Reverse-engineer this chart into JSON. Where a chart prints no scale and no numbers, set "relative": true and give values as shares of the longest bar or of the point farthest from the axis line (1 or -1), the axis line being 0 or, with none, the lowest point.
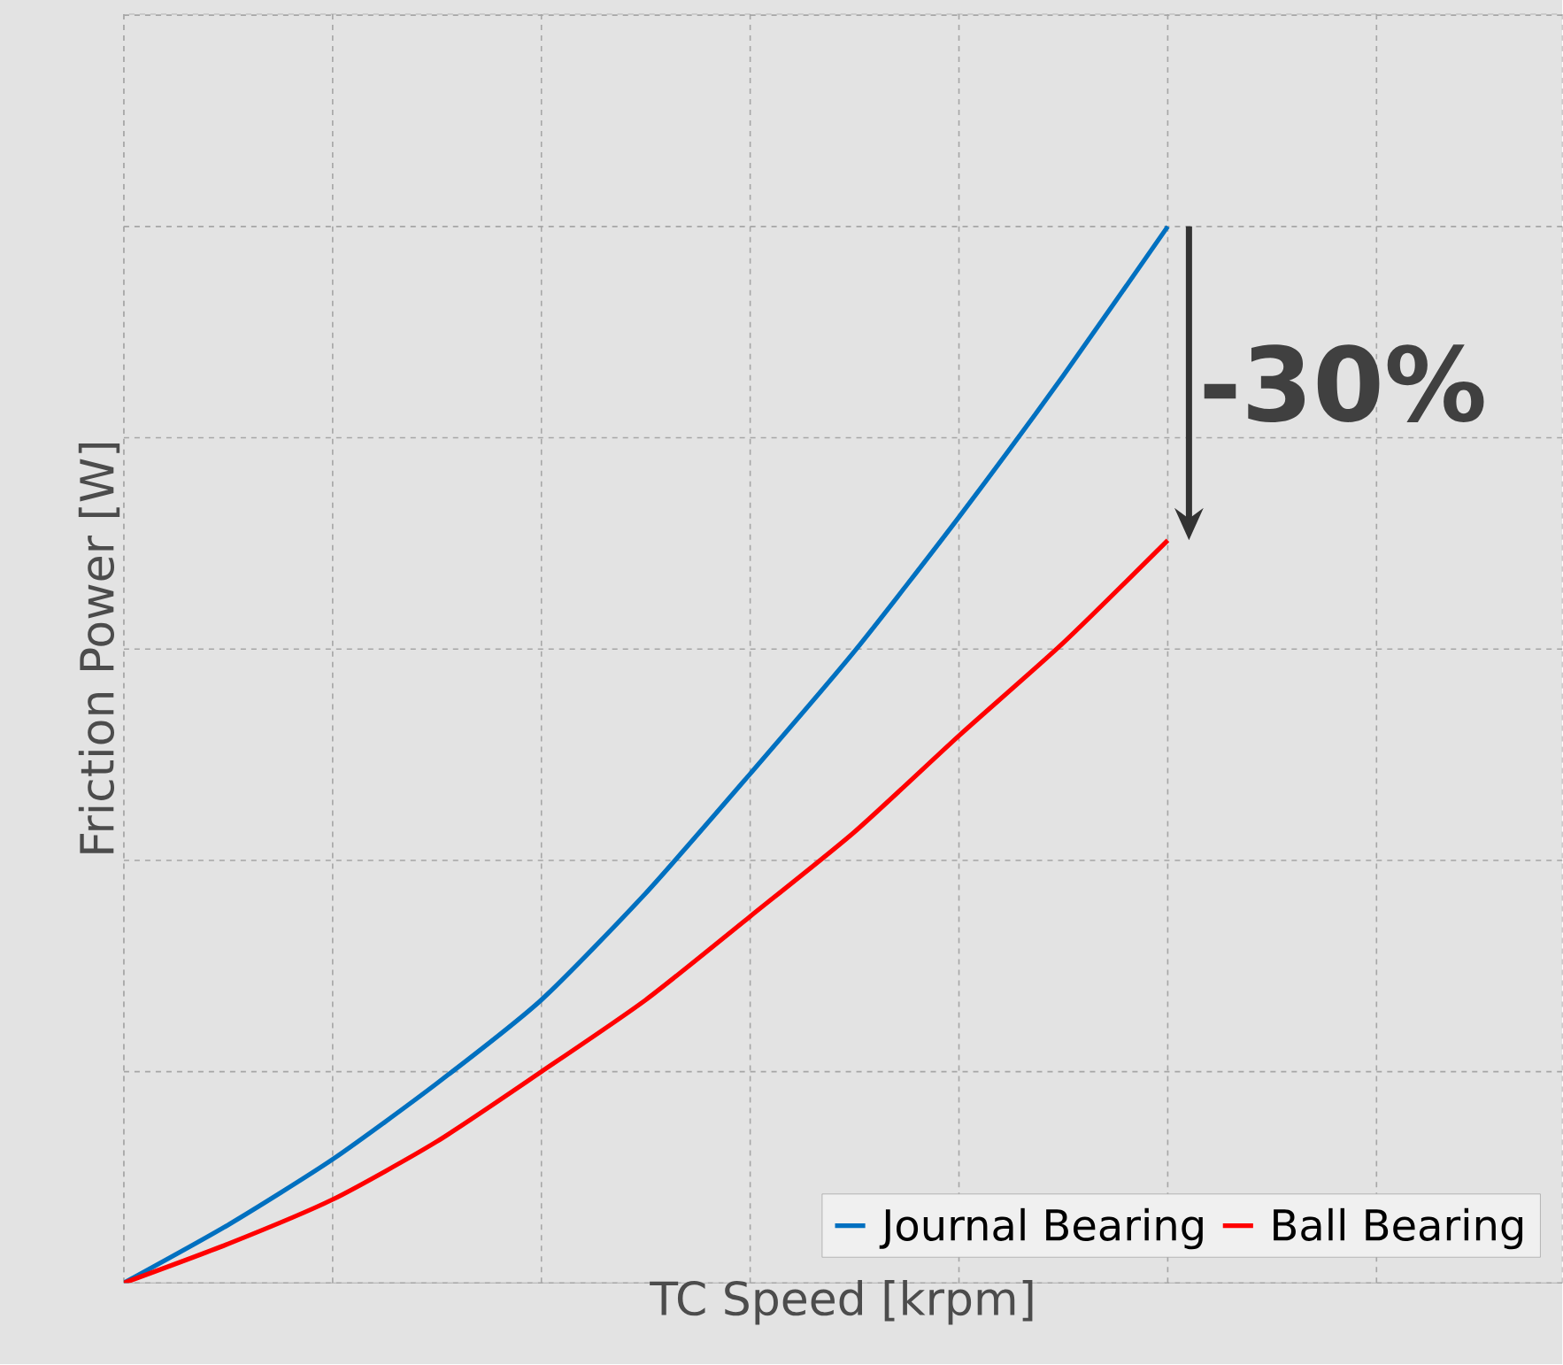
{
  "chart_data": {
    "type": "line",
    "relative": true,
    "xlabel": "TC Speed [krpm]",
    "ylabel": "Friction Power [W]",
    "categories": [
      null,
      null,
      null,
      null,
      null,
      null,
      null,
      null,
      null,
      null,
      null
    ],
    "series": [
      {
        "name": "Journal Bearing",
        "color": "#0070c0",
        "values": [
          0,
          0.055,
          0.117,
          0.189,
          0.268,
          0.369,
          0.482,
          0.598,
          0.725,
          0.859,
          1
        ]
      },
      {
        "name": "Ball Bearing",
        "color": "#ff0000",
        "values": [
          0,
          0.037,
          0.079,
          0.134,
          0.2,
          0.268,
          0.347,
          0.427,
          0.518,
          0.606,
          0.703
        ]
      }
    ],
    "annotations": [
      "-30%"
    ],
    "grid": true,
    "legend": "bottom right",
    "marker": "none",
    "line_style": "solid"
  }
}
